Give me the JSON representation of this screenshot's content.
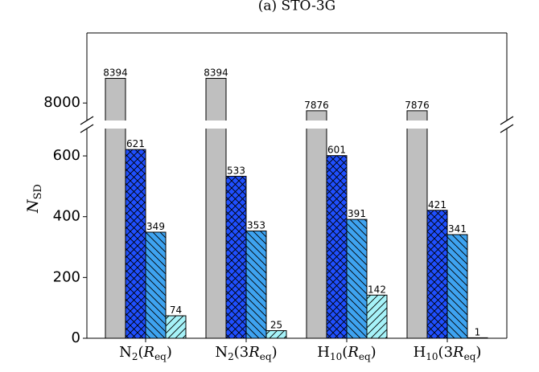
{
  "chart_data": {
    "type": "bar",
    "title": "(a) STO-3G",
    "ylabel_main": "N",
    "ylabel_sub": "SD",
    "broken_axis": true,
    "upper_ylim": [
      7720,
      9120
    ],
    "lower_ylim": [
      0,
      690
    ],
    "upper_yticks": [
      8000
    ],
    "lower_yticks": [
      0,
      200,
      400,
      600
    ],
    "categories": [
      {
        "main": "N",
        "sub": "2",
        "open": "(",
        "coef": "",
        "R": "R",
        "rsub": "eq",
        "close": ")"
      },
      {
        "main": "N",
        "sub": "2",
        "open": "(",
        "coef": "3",
        "R": "R",
        "rsub": "eq",
        "close": ")"
      },
      {
        "main": "H",
        "sub": "10",
        "open": "(",
        "coef": "",
        "R": "R",
        "rsub": "eq",
        "close": ")"
      },
      {
        "main": "H",
        "sub": "10",
        "open": "(",
        "coef": "3",
        "R": "R",
        "rsub": "eq",
        "close": ")"
      }
    ],
    "series": [
      {
        "values": [
          8394,
          8394,
          7876,
          7876
        ],
        "color": "#bfbfbf",
        "hatch": "none"
      },
      {
        "values": [
          621,
          533,
          601,
          421
        ],
        "color": "#1f4fff",
        "hatch": "cross"
      },
      {
        "values": [
          349,
          353,
          391,
          341
        ],
        "color": "#3ea3f0",
        "hatch": "back-diagonal"
      },
      {
        "values": [
          74,
          25,
          142,
          1
        ],
        "color": "#a6f2f8",
        "hatch": "forward-diagonal"
      }
    ],
    "data_labels": [
      [
        "8394",
        "621",
        "349",
        "74"
      ],
      [
        "8394",
        "533",
        "353",
        "25"
      ],
      [
        "7876",
        "601",
        "391",
        "142"
      ],
      [
        "7876",
        "421",
        "341",
        "1"
      ]
    ]
  }
}
